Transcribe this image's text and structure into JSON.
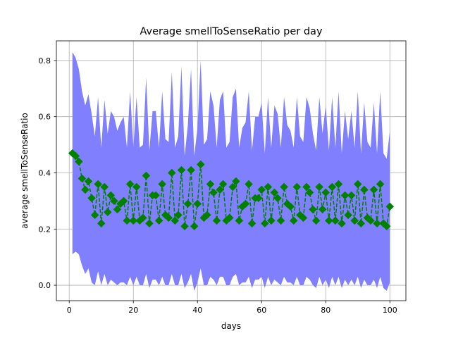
{
  "chart_data": {
    "type": "line",
    "title": "Average smellToSenseRatio per day",
    "xlabel": "days",
    "ylabel": "average smellToSenseRatio",
    "xlim": [
      -4,
      105
    ],
    "ylim": [
      -0.055,
      0.87
    ],
    "xticks": [
      0,
      20,
      40,
      60,
      80,
      100
    ],
    "yticks": [
      0.0,
      0.2,
      0.4,
      0.6,
      0.8
    ],
    "xtick_labels": [
      "0",
      "20",
      "40",
      "60",
      "80",
      "100"
    ],
    "ytick_labels": [
      "0.0",
      "0.2",
      "0.4",
      "0.6",
      "0.8"
    ],
    "grid": true,
    "colors": {
      "band": "#8080ff",
      "line": "#008000",
      "marker": "#008000",
      "grid": "#b0b0b0"
    },
    "series": [
      {
        "style": "dashed line with diamond markers",
        "x": [
          1,
          2,
          3,
          4,
          5,
          6,
          7,
          8,
          9,
          10,
          11,
          12,
          13,
          14,
          15,
          16,
          17,
          18,
          19,
          20,
          21,
          22,
          23,
          24,
          25,
          26,
          27,
          28,
          29,
          30,
          31,
          32,
          33,
          34,
          35,
          36,
          37,
          38,
          39,
          40,
          41,
          42,
          43,
          44,
          45,
          46,
          47,
          48,
          49,
          50,
          51,
          52,
          53,
          54,
          55,
          56,
          57,
          58,
          59,
          60,
          61,
          62,
          63,
          64,
          65,
          66,
          67,
          68,
          69,
          70,
          71,
          72,
          73,
          74,
          75,
          76,
          77,
          78,
          79,
          80,
          81,
          82,
          83,
          84,
          85,
          86,
          87,
          88,
          89,
          90,
          91,
          92,
          93,
          94,
          95,
          96,
          97,
          98,
          99,
          100
        ],
        "y": [
          0.47,
          0.46,
          0.44,
          0.38,
          0.34,
          0.37,
          0.31,
          0.25,
          0.36,
          0.22,
          0.35,
          0.26,
          0.32,
          0.3,
          0.27,
          0.29,
          0.3,
          0.23,
          0.36,
          0.23,
          0.35,
          0.23,
          0.24,
          0.39,
          0.22,
          0.32,
          0.32,
          0.23,
          0.36,
          0.25,
          0.24,
          0.4,
          0.23,
          0.25,
          0.41,
          0.21,
          0.29,
          0.41,
          0.21,
          0.29,
          0.43,
          0.24,
          0.25,
          0.36,
          0.33,
          0.23,
          0.34,
          0.36,
          0.23,
          0.24,
          0.35,
          0.37,
          0.23,
          0.28,
          0.29,
          0.36,
          0.22,
          0.31,
          0.31,
          0.34,
          0.22,
          0.35,
          0.23,
          0.33,
          0.31,
          0.23,
          0.35,
          0.29,
          0.28,
          0.23,
          0.35,
          0.25,
          0.24,
          0.35,
          0.33,
          0.27,
          0.23,
          0.35,
          0.27,
          0.33,
          0.23,
          0.35,
          0.23,
          0.36,
          0.22,
          0.32,
          0.25,
          0.32,
          0.23,
          0.36,
          0.22,
          0.34,
          0.24,
          0.23,
          0.34,
          0.22,
          0.36,
          0.22,
          0.21,
          0.28
        ]
      }
    ],
    "band": {
      "x": [
        1,
        2,
        3,
        4,
        5,
        6,
        7,
        8,
        9,
        10,
        11,
        12,
        13,
        14,
        15,
        16,
        17,
        18,
        19,
        20,
        21,
        22,
        23,
        24,
        25,
        26,
        27,
        28,
        29,
        30,
        31,
        32,
        33,
        34,
        35,
        36,
        37,
        38,
        39,
        40,
        41,
        42,
        43,
        44,
        45,
        46,
        47,
        48,
        49,
        50,
        51,
        52,
        53,
        54,
        55,
        56,
        57,
        58,
        59,
        60,
        61,
        62,
        63,
        64,
        65,
        66,
        67,
        68,
        69,
        70,
        71,
        72,
        73,
        74,
        75,
        76,
        77,
        78,
        79,
        80,
        81,
        82,
        83,
        84,
        85,
        86,
        87,
        88,
        89,
        90,
        91,
        92,
        93,
        94,
        95,
        96,
        97,
        98,
        99,
        100
      ],
      "upper": [
        0.83,
        0.81,
        0.77,
        0.69,
        0.64,
        0.68,
        0.61,
        0.53,
        0.67,
        0.49,
        0.66,
        0.54,
        0.62,
        0.6,
        0.55,
        0.58,
        0.6,
        0.49,
        0.69,
        0.49,
        0.67,
        0.49,
        0.5,
        0.74,
        0.48,
        0.62,
        0.62,
        0.49,
        0.69,
        0.52,
        0.51,
        0.76,
        0.49,
        0.53,
        0.78,
        0.46,
        0.57,
        0.77,
        0.46,
        0.56,
        0.8,
        0.5,
        0.52,
        0.69,
        0.64,
        0.49,
        0.66,
        0.69,
        0.49,
        0.51,
        0.67,
        0.7,
        0.49,
        0.56,
        0.58,
        0.69,
        0.48,
        0.6,
        0.6,
        0.65,
        0.47,
        0.67,
        0.49,
        0.64,
        0.61,
        0.49,
        0.67,
        0.57,
        0.55,
        0.49,
        0.67,
        0.53,
        0.51,
        0.67,
        0.63,
        0.54,
        0.48,
        0.67,
        0.54,
        0.64,
        0.48,
        0.67,
        0.49,
        0.69,
        0.47,
        0.62,
        0.52,
        0.62,
        0.49,
        0.69,
        0.47,
        0.65,
        0.51,
        0.49,
        0.65,
        0.47,
        0.69,
        0.47,
        0.45,
        0.55
      ],
      "lower": [
        0.11,
        0.12,
        0.11,
        0.07,
        0.04,
        0.06,
        0.01,
        0.0,
        0.05,
        0.0,
        0.04,
        0.0,
        0.02,
        0.01,
        0.0,
        0.01,
        0.01,
        0.0,
        0.03,
        0.0,
        0.03,
        0.0,
        0.0,
        0.04,
        -0.01,
        0.02,
        0.02,
        0.0,
        0.03,
        0.0,
        0.0,
        0.04,
        0.0,
        0.0,
        0.04,
        -0.01,
        0.01,
        0.04,
        -0.02,
        0.01,
        0.06,
        0.0,
        0.0,
        0.03,
        0.02,
        0.0,
        0.03,
        0.03,
        0.0,
        0.0,
        0.03,
        0.04,
        0.0,
        0.01,
        0.01,
        0.03,
        -0.01,
        0.02,
        0.02,
        0.03,
        -0.01,
        0.03,
        0.0,
        0.02,
        0.01,
        0.0,
        0.03,
        0.01,
        0.01,
        0.0,
        0.03,
        0.0,
        0.0,
        0.03,
        0.02,
        0.0,
        -0.01,
        0.03,
        0.0,
        0.02,
        -0.01,
        0.03,
        0.0,
        0.03,
        -0.01,
        0.02,
        0.0,
        0.02,
        0.0,
        0.03,
        -0.01,
        0.02,
        0.0,
        0.0,
        0.02,
        -0.01,
        0.03,
        -0.01,
        -0.02,
        0.01
      ]
    }
  }
}
